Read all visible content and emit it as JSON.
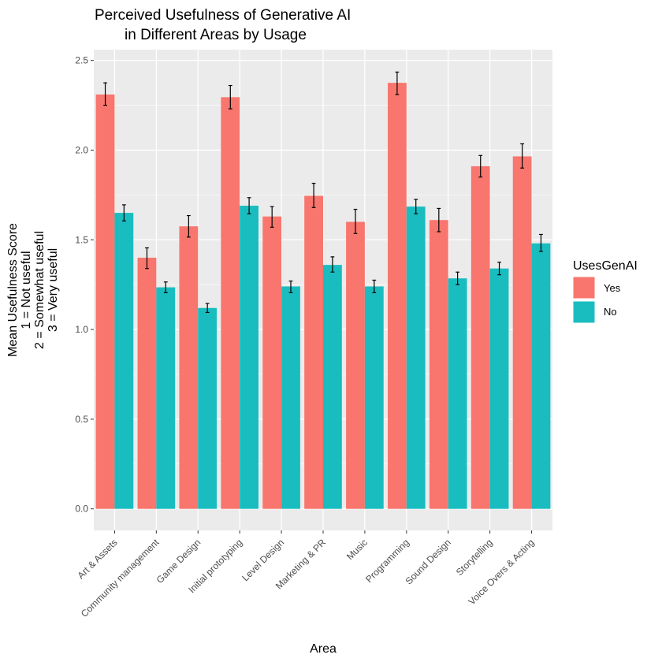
{
  "chart_data": {
    "type": "bar",
    "title": [
      "Perceived Usefulness of Generative AI",
      "in Different Areas by Usage"
    ],
    "xlabel": "Area",
    "ylabel": [
      "Mean Usefulness Score",
      "1 = Not useful",
      "2 = Somewhat useful",
      "3 = Very useful"
    ],
    "ylim": [
      -0.12,
      2.56
    ],
    "yticks": [
      0.0,
      0.5,
      1.0,
      1.5,
      2.0,
      2.5
    ],
    "ytick_labels": [
      "0.0",
      "0.5",
      "1.0",
      "1.5",
      "2.0",
      "2.5"
    ],
    "categories": [
      "Art & Assets",
      "Community management",
      "Game Design",
      "Initial prototyping",
      "Level Design",
      "Marketing & PR",
      "Music",
      "Programming",
      "Sound Design",
      "Storytelling",
      "Voice Overs & Acting"
    ],
    "legend": {
      "title": "UsesGenAI",
      "position": "right"
    },
    "grid": true,
    "series": [
      {
        "name": "Yes",
        "color": "#F8766D",
        "values": [
          2.31,
          1.4,
          1.575,
          2.295,
          1.63,
          1.745,
          1.6,
          2.375,
          1.61,
          1.91,
          1.965
        ],
        "err_low": [
          2.25,
          1.34,
          1.515,
          2.23,
          1.57,
          1.68,
          1.535,
          2.31,
          1.545,
          1.85,
          1.9
        ],
        "err_high": [
          2.375,
          1.455,
          1.635,
          2.36,
          1.685,
          1.815,
          1.67,
          2.435,
          1.675,
          1.97,
          2.035
        ]
      },
      {
        "name": "No",
        "color": "#19BDC0",
        "values": [
          1.65,
          1.235,
          1.12,
          1.69,
          1.24,
          1.36,
          1.24,
          1.685,
          1.285,
          1.34,
          1.48
        ],
        "err_low": [
          1.605,
          1.205,
          1.095,
          1.645,
          1.205,
          1.32,
          1.205,
          1.645,
          1.25,
          1.305,
          1.435
        ],
        "err_high": [
          1.695,
          1.265,
          1.145,
          1.735,
          1.27,
          1.405,
          1.275,
          1.725,
          1.32,
          1.375,
          1.53
        ]
      }
    ]
  }
}
